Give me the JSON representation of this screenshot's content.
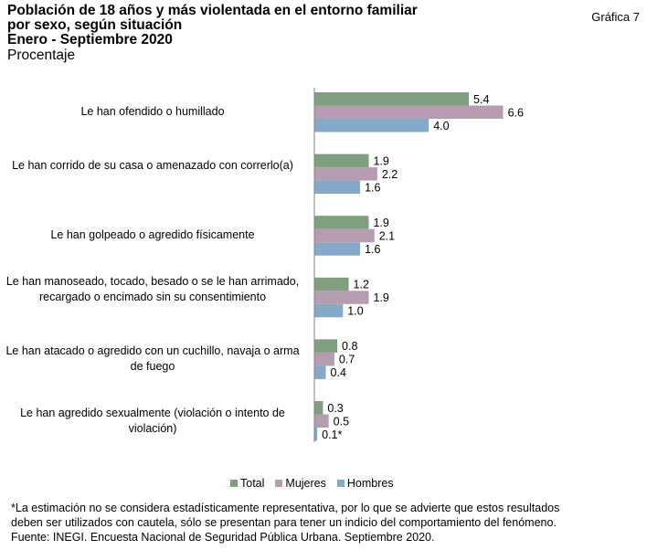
{
  "header": {
    "title_line1": "Población de 18 años y más violentada en el entorno familiar",
    "title_line2": "por sexo, según situación",
    "title_line3": "Enero - Septiembre 2020",
    "unit": "Procentaje",
    "chart_ref": "Gráfica 7"
  },
  "legend": {
    "total": "Total",
    "mujeres": "Mujeres",
    "hombres": "Hombres"
  },
  "colors": {
    "total": "#7f9f7f",
    "mujeres": "#b69cb0",
    "hombres": "#87a9c9"
  },
  "footnotes": {
    "line1": "*La estimación no se considera estadísticamente representativa, por lo que se advierte que estos resultados",
    "line2": "deben ser utilizados con cautela, sólo se presentan para tener un indicio del comportamiento del fenómeno.",
    "source": "Fuente: INEGI. Encuesta Nacional de Seguridad Pública Urbana. Septiembre 2020."
  },
  "chart_data": {
    "type": "bar",
    "orientation": "horizontal",
    "title": "Población de 18 años y más violentada en el entorno familiar por sexo, según situación",
    "ylabel": "Procentaje",
    "categories": [
      "Le han ofendido o humillado",
      "Le han corrido de su casa o amenazado con correrlo(a)",
      "Le han golpeado o agredido físicamente",
      "Le han manoseado, tocado, besado o se le han arrimado, recargado o encimado sin su consentimiento",
      "Le han atacado o agredido con un cuchillo, navaja o arma de fuego",
      "Le han agredido sexualmente (violación o intento de violación)"
    ],
    "series": [
      {
        "name": "Total",
        "values": [
          5.4,
          1.9,
          1.9,
          1.2,
          0.8,
          0.3
        ],
        "labels": [
          "5.4",
          "1.9",
          "1.9",
          "1.2",
          "0.8",
          "0.3"
        ]
      },
      {
        "name": "Mujeres",
        "values": [
          6.6,
          2.2,
          2.1,
          1.9,
          0.7,
          0.5
        ],
        "labels": [
          "6.6",
          "2.2",
          "2.1",
          "1.9",
          "0.7",
          "0.5"
        ]
      },
      {
        "name": "Hombres",
        "values": [
          4.0,
          1.6,
          1.6,
          1.0,
          0.4,
          0.1
        ],
        "labels": [
          "4.0",
          "1.6",
          "1.6",
          "1.0",
          "0.4",
          "0.1*"
        ]
      }
    ],
    "xlim": [
      0,
      7
    ],
    "grid": false,
    "legend_position": "bottom"
  }
}
